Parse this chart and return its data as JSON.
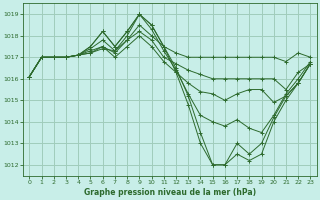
{
  "title": "Graphe pression niveau de la mer (hPa)",
  "background_color": "#c8eee8",
  "grid_color": "#a0ccbb",
  "line_color": "#2d6a2d",
  "xlim": [
    -0.5,
    23.5
  ],
  "ylim": [
    1011.5,
    1019.5
  ],
  "yticks": [
    1012,
    1013,
    1014,
    1015,
    1016,
    1017,
    1018,
    1019
  ],
  "xticks": [
    0,
    1,
    2,
    3,
    4,
    5,
    6,
    7,
    8,
    9,
    10,
    11,
    12,
    13,
    14,
    15,
    16,
    17,
    18,
    19,
    20,
    21,
    22,
    23
  ],
  "series": [
    [
      1016.1,
      1017.0,
      1017.0,
      1017.0,
      1017.1,
      1017.2,
      1017.5,
      1017.2,
      1017.8,
      1018.5,
      1018.0,
      1017.5,
      1017.2,
      1017.0,
      1017.0,
      1017.0,
      1017.0,
      1017.0,
      1017.0,
      1017.0,
      1017.0,
      1016.8,
      1017.2,
      1017.0
    ],
    [
      1016.1,
      1017.0,
      1017.0,
      1017.0,
      1017.1,
      1017.2,
      1017.4,
      1017.3,
      1017.8,
      1018.2,
      1017.8,
      1017.0,
      1016.7,
      1016.4,
      1016.2,
      1016.0,
      1016.0,
      1016.0,
      1016.0,
      1016.0,
      1016.0,
      1015.5,
      1016.3,
      1016.7
    ],
    [
      1016.1,
      1017.0,
      1017.0,
      1017.0,
      1017.1,
      1017.3,
      1017.5,
      1017.0,
      1017.5,
      1018.0,
      1017.5,
      1016.8,
      1016.3,
      1015.8,
      1015.4,
      1015.3,
      1015.0,
      1015.3,
      1015.5,
      1015.5,
      1014.9,
      1015.2,
      1015.8,
      1016.7
    ],
    [
      1016.1,
      1017.0,
      1017.0,
      1017.0,
      1017.1,
      1017.4,
      1017.8,
      1017.3,
      1018.0,
      1019.0,
      1018.3,
      1017.3,
      1016.4,
      1015.3,
      1014.3,
      1014.0,
      1013.8,
      1014.1,
      1013.7,
      1013.5,
      1014.3,
      1015.3,
      1016.0,
      1016.8
    ],
    [
      1016.1,
      1017.0,
      1017.0,
      1017.0,
      1017.1,
      1017.5,
      1018.2,
      1017.5,
      1018.2,
      1019.0,
      1018.5,
      1017.5,
      1016.5,
      1015.2,
      1013.5,
      1012.0,
      1012.0,
      1013.0,
      1012.5,
      1013.0,
      1014.2,
      1015.2,
      1015.8,
      1016.7
    ],
    [
      1016.1,
      1017.0,
      1017.0,
      1017.0,
      1017.1,
      1017.5,
      1018.2,
      1017.5,
      1018.2,
      1019.0,
      1018.5,
      1017.5,
      1016.3,
      1014.8,
      1013.0,
      1012.0,
      1012.0,
      1012.5,
      1012.2,
      1012.5,
      1014.0,
      1015.0,
      1015.8,
      1016.7
    ]
  ]
}
